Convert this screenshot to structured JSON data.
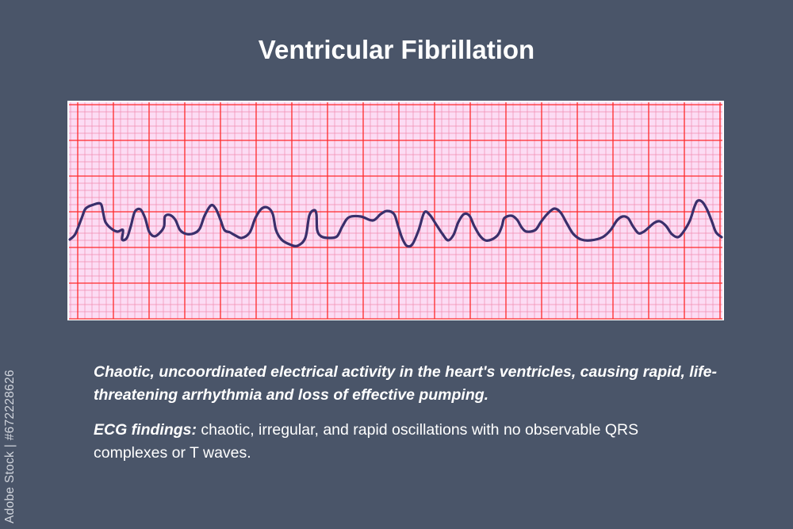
{
  "title": "Ventricular Fibrillation",
  "description": "Chaotic, uncoordinated electrical activity in the heart's ventricles, causing rapid, life-threatening arrhythmia and loss of effective pumping.",
  "findings": {
    "label": "ECG findings:",
    "text": " chaotic, irregular, and rapid oscillations with no observable QRS complexes or T waves."
  },
  "watermark": "Adobe Stock | #672228626",
  "colors": {
    "background": "#4a5569",
    "grid_paper": "#fcdcf4",
    "grid_major": "#ff2a2a",
    "grid_minor": "#f48aa8",
    "trace": "#3a2f6b"
  }
}
